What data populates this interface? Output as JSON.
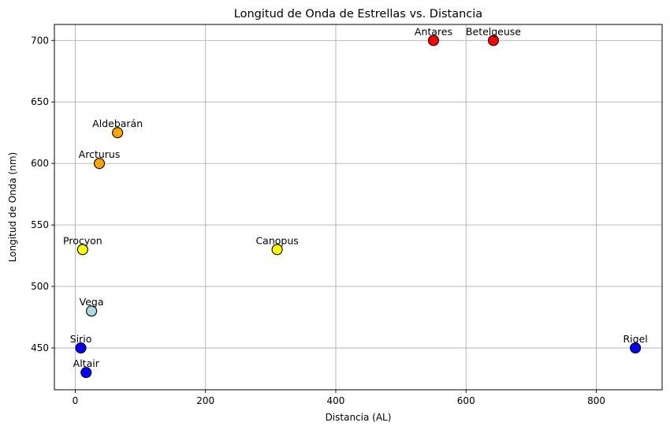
{
  "chart_data": {
    "type": "scatter",
    "title": "Longitud de Onda de Estrellas vs. Distancia",
    "xlabel": "Distancia (AL)",
    "ylabel": "Longitud de Onda (nm)",
    "xlim": [
      -32,
      901
    ],
    "ylim": [
      416,
      713
    ],
    "xticks": [
      0,
      200,
      400,
      600,
      800
    ],
    "yticks": [
      450,
      500,
      550,
      600,
      650,
      700
    ],
    "grid": true,
    "points": [
      {
        "label": "Sirio",
        "x": 8.6,
        "y": 450,
        "color": "#0000ff"
      },
      {
        "label": "Altair",
        "x": 16.7,
        "y": 430,
        "color": "#0000ff"
      },
      {
        "label": "Procyon",
        "x": 11.4,
        "y": 530,
        "color": "#ffff00"
      },
      {
        "label": "Vega",
        "x": 25,
        "y": 480,
        "color": "#add8e6"
      },
      {
        "label": "Arcturus",
        "x": 37,
        "y": 600,
        "color": "#ffa500"
      },
      {
        "label": "Aldebarán",
        "x": 65,
        "y": 625,
        "color": "#ffa500"
      },
      {
        "label": "Canopus",
        "x": 310,
        "y": 530,
        "color": "#ffff00"
      },
      {
        "label": "Antares",
        "x": 550,
        "y": 700,
        "color": "#ff0000"
      },
      {
        "label": "Betelgeuse",
        "x": 642,
        "y": 700,
        "color": "#ff0000"
      },
      {
        "label": "Rigel",
        "x": 860,
        "y": 450,
        "color": "#0000ff"
      }
    ]
  }
}
